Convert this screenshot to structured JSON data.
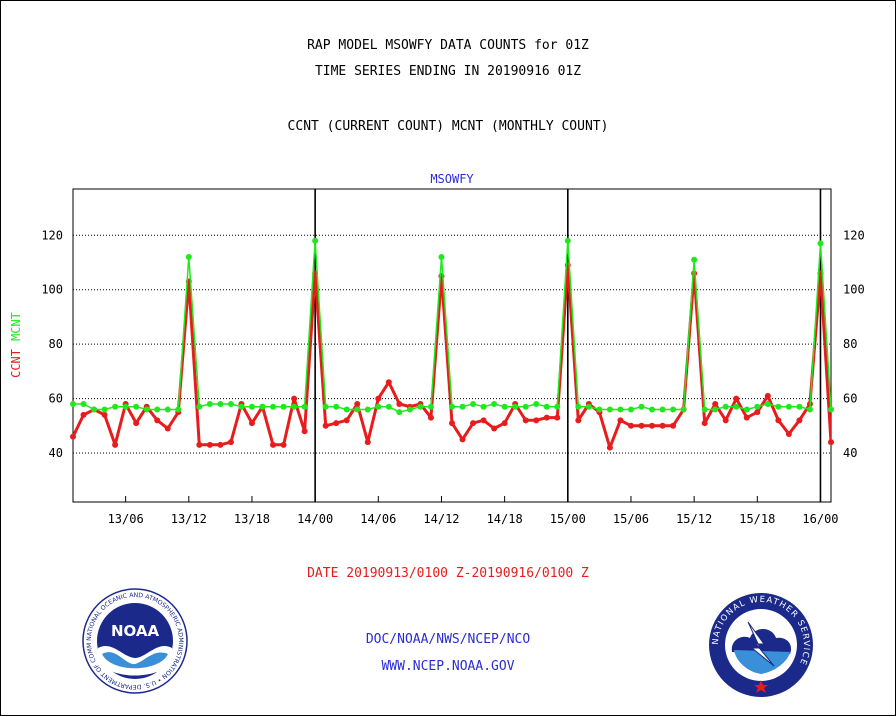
{
  "header": {
    "line1": "RAP MODEL MSOWFY DATA COUNTS for 01Z",
    "line2": "TIME SERIES ENDING IN 20190916 01Z",
    "line3": "CCNT (CURRENT COUNT) MCNT (MONTHLY COUNT)"
  },
  "footer": {
    "date_range": "DATE 20190913/0100 Z-20190916/0100 Z",
    "org": "DOC/NOAA/NWS/NCEP/NCO",
    "url": "WWW.NCEP.NOAA.GOV"
  },
  "logos": {
    "left": {
      "icon": "noaa-logo-icon",
      "text": "NOAA",
      "ring_text": "NATIONAL OCEANIC AND ATMOSPHERIC ADMINISTRATION • U.S. DEPARTMENT OF COMMERCE"
    },
    "right": {
      "icon": "nws-logo-icon",
      "ring_text": "NATIONAL WEATHER SERVICE"
    }
  },
  "colors": {
    "ccnt": "#e81c1c",
    "mcnt": "#1fe81f",
    "title": "#2b2bd6"
  },
  "chart_data": {
    "type": "line",
    "title": "MSOWFY",
    "ylabel_series": [
      "CCNT",
      "MCNT"
    ],
    "ylim": [
      22,
      137
    ],
    "yticks": [
      40,
      60,
      80,
      100,
      120
    ],
    "xlim": [
      0,
      72
    ],
    "xtick_positions": [
      5,
      11,
      17,
      23,
      29,
      35,
      41,
      47,
      53,
      59,
      65,
      71
    ],
    "xtick_labels": [
      "13/06",
      "13/12",
      "13/18",
      "14/00",
      "14/06",
      "14/12",
      "14/18",
      "15/00",
      "15/06",
      "15/12",
      "15/18",
      "16/00"
    ],
    "day_boundaries": [
      23,
      47,
      71
    ],
    "grid": "horizontal-dotted",
    "series": [
      {
        "name": "CCNT",
        "values": [
          46,
          54,
          56,
          54,
          43,
          58,
          51,
          57,
          52,
          49,
          55,
          103,
          43,
          43,
          43,
          44,
          58,
          51,
          57,
          43,
          43,
          60,
          48,
          106,
          50,
          51,
          52,
          58,
          44,
          60,
          66,
          58,
          57,
          58,
          53,
          105,
          51,
          45,
          51,
          52,
          49,
          51,
          58,
          52,
          52,
          53,
          53,
          109,
          52,
          58,
          55,
          42,
          52,
          50,
          50,
          50,
          50,
          50,
          56,
          106,
          51,
          58,
          52,
          60,
          53,
          55,
          61,
          52,
          47,
          52,
          58,
          106,
          44
        ]
      },
      {
        "name": "MCNT",
        "values": [
          58,
          58,
          56,
          56,
          57,
          57,
          57,
          56,
          56,
          56,
          56,
          112,
          57,
          58,
          58,
          58,
          57,
          57,
          57,
          57,
          57,
          57,
          57,
          118,
          57,
          57,
          56,
          56,
          56,
          57,
          57,
          55,
          56,
          57,
          57,
          112,
          57,
          57,
          58,
          57,
          58,
          57,
          57,
          57,
          58,
          57,
          57,
          118,
          57,
          57,
          56,
          56,
          56,
          56,
          57,
          56,
          56,
          56,
          56,
          111,
          56,
          56,
          57,
          57,
          56,
          57,
          58,
          57,
          57,
          57,
          56,
          117,
          56
        ]
      }
    ]
  }
}
